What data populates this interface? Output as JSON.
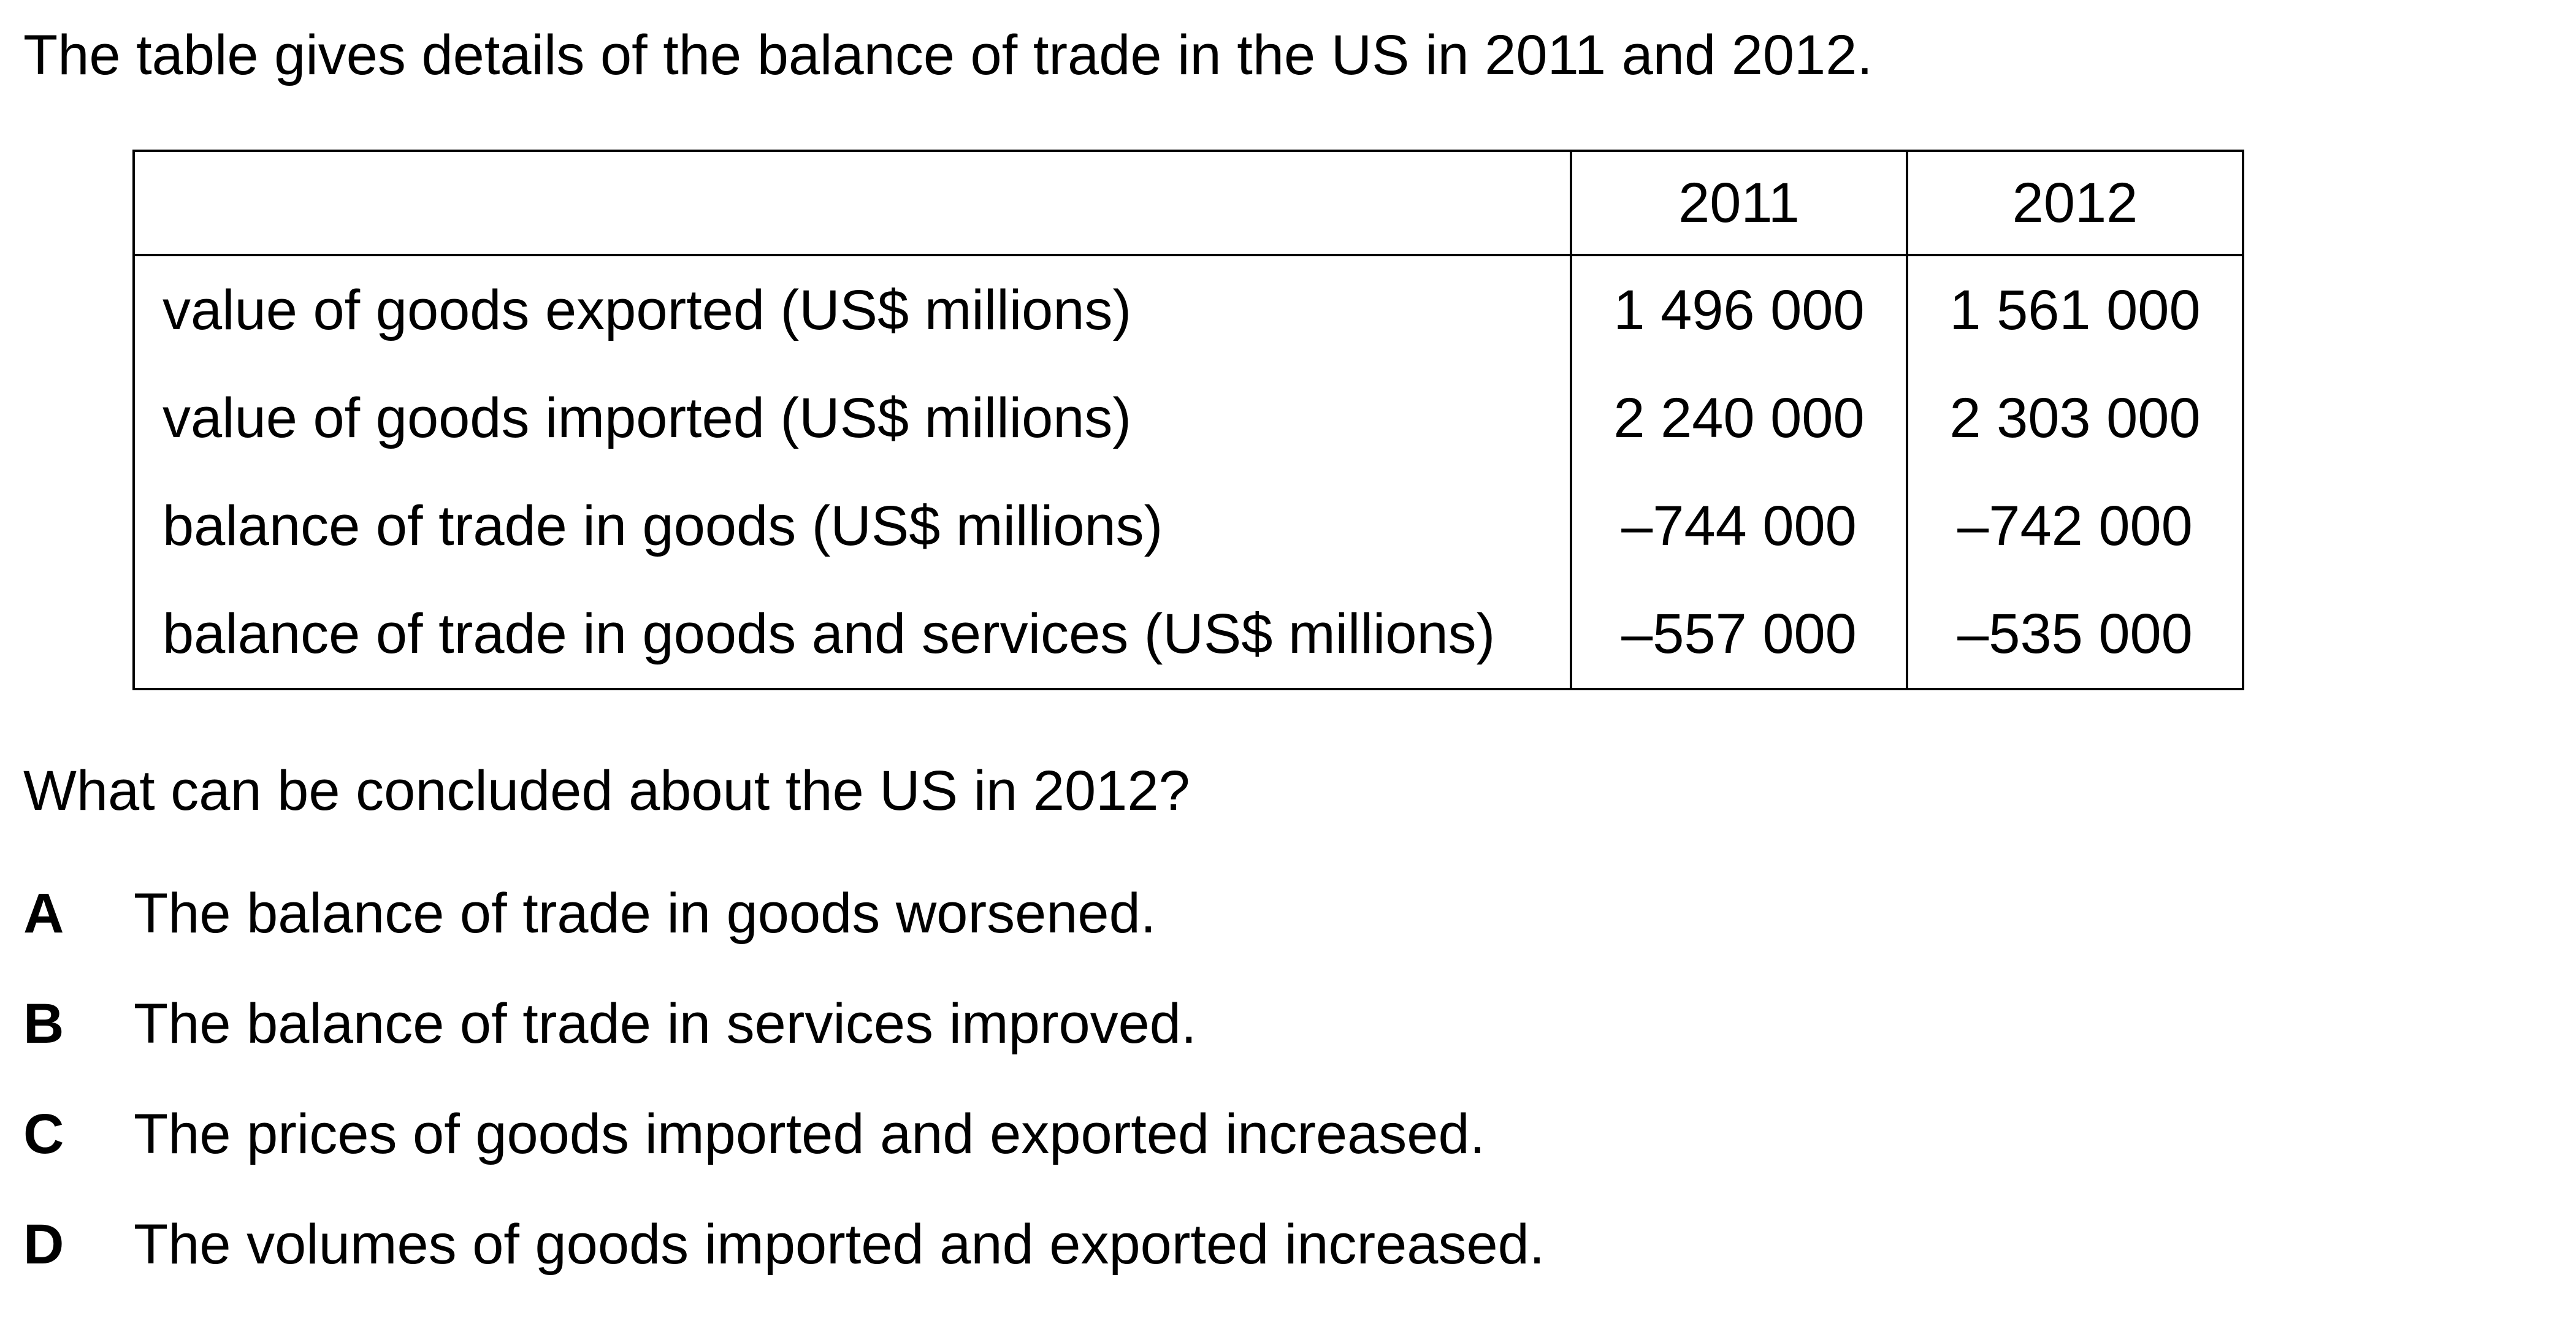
{
  "intro": "The table gives details of the balance of trade in the US in 2011 and 2012.",
  "table": {
    "headers": [
      "",
      "2011",
      "2012"
    ],
    "rows": [
      {
        "label": "value of goods exported (US$ millions)",
        "y2011": "1 496 000",
        "y2012": "1 561 000"
      },
      {
        "label": "value of goods imported (US$ millions)",
        "y2011": "2 240 000",
        "y2012": "2 303 000"
      },
      {
        "label": "balance of trade in goods (US$ millions)",
        "y2011": "–744 000",
        "y2012": "–742 000"
      },
      {
        "label": "balance of trade in goods and services (US$ millions)",
        "y2011": "–557 000",
        "y2012": "–535 000"
      }
    ]
  },
  "question": "What can be concluded about the US in 2012?",
  "options": [
    {
      "letter": "A",
      "text": "The balance of trade in goods worsened."
    },
    {
      "letter": "B",
      "text": "The balance of trade in services improved."
    },
    {
      "letter": "C",
      "text": "The prices of goods imported and exported increased."
    },
    {
      "letter": "D",
      "text": "The volumes of goods imported and exported increased."
    }
  ]
}
